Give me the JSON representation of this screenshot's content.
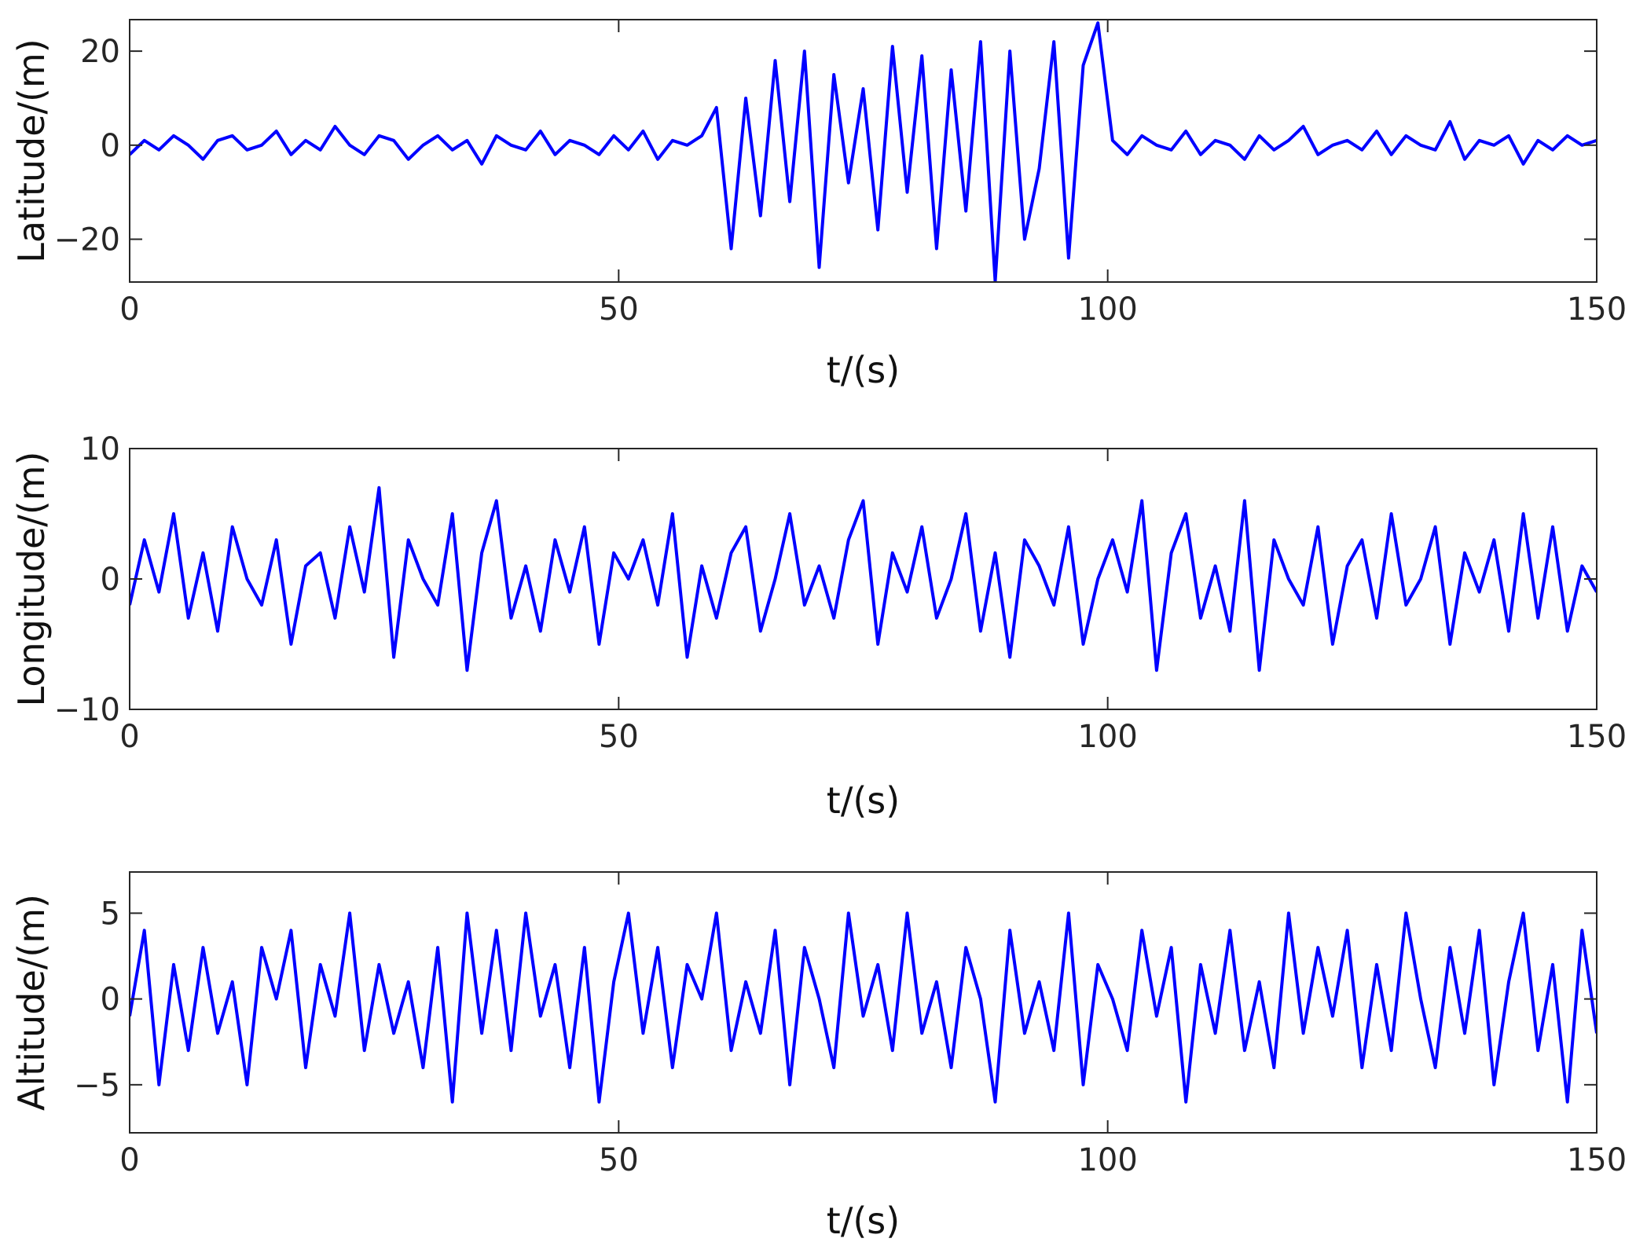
{
  "chart_data": [
    {
      "type": "line",
      "xlabel": "t/(s)",
      "ylabel": "Latitude/(m)",
      "x": [
        0,
        1.5,
        3,
        4.5,
        6,
        7.5,
        9,
        10.5,
        12,
        13.5,
        15,
        16.5,
        18,
        19.5,
        21,
        22.5,
        24,
        25.5,
        27,
        28.5,
        30,
        31.5,
        33,
        34.5,
        36,
        37.5,
        39,
        40.5,
        42,
        43.5,
        45,
        46.5,
        48,
        49.5,
        51,
        52.5,
        54,
        55.5,
        57,
        58.5,
        60,
        61.5,
        63,
        64.5,
        66,
        67.5,
        69,
        70.5,
        72,
        73.5,
        75,
        76.5,
        78,
        79.5,
        81,
        82.5,
        84,
        85.5,
        87,
        88.5,
        90,
        91.5,
        93,
        94.5,
        96,
        97.5,
        99,
        100.5,
        102,
        103.5,
        105,
        106.5,
        108,
        109.5,
        111,
        112.5,
        114,
        115.5,
        117,
        118.5,
        120,
        121.5,
        123,
        124.5,
        126,
        127.5,
        129,
        130.5,
        132,
        133.5,
        135,
        136.5,
        138,
        139.5,
        141,
        142.5,
        144,
        145.5,
        147,
        148.5,
        150
      ],
      "series": [
        {
          "color": "#0000ff",
          "values": [
            -2,
            1,
            -1,
            2,
            0,
            -3,
            1,
            2,
            -1,
            0,
            3,
            -2,
            1,
            -1,
            4,
            0,
            -2,
            2,
            1,
            -3,
            0,
            2,
            -1,
            1,
            -4,
            2,
            0,
            -1,
            3,
            -2,
            1,
            0,
            -2,
            2,
            -1,
            3,
            -3,
            1,
            0,
            2,
            8,
            -22,
            10,
            -15,
            18,
            -12,
            20,
            -26,
            15,
            -8,
            12,
            -18,
            21,
            -10,
            19,
            -22,
            16,
            -14,
            22,
            -29,
            20,
            -20,
            -5,
            22,
            -24,
            17,
            26,
            1,
            -2,
            2,
            0,
            -1,
            3,
            -2,
            1,
            0,
            -3,
            2,
            -1,
            1,
            4,
            -2,
            0,
            1,
            -1,
            3,
            -2,
            2,
            0,
            -1,
            5,
            -3,
            1,
            0,
            2,
            -4,
            1,
            -1,
            2,
            0,
            1
          ]
        }
      ],
      "xlim": [
        0,
        150
      ],
      "ylim": [
        -29.1,
        26.7
      ],
      "xticks": [
        0,
        50,
        100,
        150
      ],
      "yticks": [
        {
          "value": -20,
          "label": "−20"
        },
        0,
        20
      ]
    },
    {
      "type": "line",
      "xlabel": "t/(s)",
      "ylabel": "Longitude/(m)",
      "x": [
        0,
        1.5,
        3,
        4.5,
        6,
        7.5,
        9,
        10.5,
        12,
        13.5,
        15,
        16.5,
        18,
        19.5,
        21,
        22.5,
        24,
        25.5,
        27,
        28.5,
        30,
        31.5,
        33,
        34.5,
        36,
        37.5,
        39,
        40.5,
        42,
        43.5,
        45,
        46.5,
        48,
        49.5,
        51,
        52.5,
        54,
        55.5,
        57,
        58.5,
        60,
        61.5,
        63,
        64.5,
        66,
        67.5,
        69,
        70.5,
        72,
        73.5,
        75,
        76.5,
        78,
        79.5,
        81,
        82.5,
        84,
        85.5,
        87,
        88.5,
        90,
        91.5,
        93,
        94.5,
        96,
        97.5,
        99,
        100.5,
        102,
        103.5,
        105,
        106.5,
        108,
        109.5,
        111,
        112.5,
        114,
        115.5,
        117,
        118.5,
        120,
        121.5,
        123,
        124.5,
        126,
        127.5,
        129,
        130.5,
        132,
        133.5,
        135,
        136.5,
        138,
        139.5,
        141,
        142.5,
        144,
        145.5,
        147,
        148.5,
        150
      ],
      "series": [
        {
          "color": "#0000ff",
          "values": [
            -2,
            3,
            -1,
            5,
            -3,
            2,
            -4,
            4,
            0,
            -2,
            3,
            -5,
            1,
            2,
            -3,
            4,
            -1,
            7,
            -6,
            3,
            0,
            -2,
            5,
            -7,
            2,
            6,
            -3,
            1,
            -4,
            3,
            -1,
            4,
            -5,
            2,
            0,
            3,
            -2,
            5,
            -6,
            1,
            -3,
            2,
            4,
            -4,
            0,
            5,
            -2,
            1,
            -3,
            3,
            6,
            -5,
            2,
            -1,
            4,
            -3,
            0,
            5,
            -4,
            2,
            -6,
            3,
            1,
            -2,
            4,
            -5,
            0,
            3,
            -1,
            6,
            -7,
            2,
            5,
            -3,
            1,
            -4,
            6,
            -7,
            3,
            0,
            -2,
            4,
            -5,
            1,
            3,
            -3,
            5,
            -2,
            0,
            4,
            -5,
            2,
            -1,
            3,
            -4,
            5,
            -3,
            4,
            -4,
            1,
            -1
          ]
        }
      ],
      "xlim": [
        0,
        150
      ],
      "ylim": [
        -10,
        10
      ],
      "xticks": [
        0,
        50,
        100,
        150
      ],
      "yticks": [
        {
          "value": -10,
          "label": "−10"
        },
        0,
        10
      ]
    },
    {
      "type": "line",
      "xlabel": "t/(s)",
      "ylabel": "Altitude/(m)",
      "x": [
        0,
        1.5,
        3,
        4.5,
        6,
        7.5,
        9,
        10.5,
        12,
        13.5,
        15,
        16.5,
        18,
        19.5,
        21,
        22.5,
        24,
        25.5,
        27,
        28.5,
        30,
        31.5,
        33,
        34.5,
        36,
        37.5,
        39,
        40.5,
        42,
        43.5,
        45,
        46.5,
        48,
        49.5,
        51,
        52.5,
        54,
        55.5,
        57,
        58.5,
        60,
        61.5,
        63,
        64.5,
        66,
        67.5,
        69,
        70.5,
        72,
        73.5,
        75,
        76.5,
        78,
        79.5,
        81,
        82.5,
        84,
        85.5,
        87,
        88.5,
        90,
        91.5,
        93,
        94.5,
        96,
        97.5,
        99,
        100.5,
        102,
        103.5,
        105,
        106.5,
        108,
        109.5,
        111,
        112.5,
        114,
        115.5,
        117,
        118.5,
        120,
        121.5,
        123,
        124.5,
        126,
        127.5,
        129,
        130.5,
        132,
        133.5,
        135,
        136.5,
        138,
        139.5,
        141,
        142.5,
        144,
        145.5,
        147,
        148.5,
        150
      ],
      "series": [
        {
          "color": "#0000ff",
          "values": [
            -1,
            4,
            -5,
            2,
            -3,
            3,
            -2,
            1,
            -5,
            3,
            0,
            4,
            -4,
            2,
            -1,
            5,
            -3,
            2,
            -2,
            1,
            -4,
            3,
            -6,
            5,
            -2,
            4,
            -3,
            5,
            -1,
            2,
            -4,
            3,
            -6,
            1,
            5,
            -2,
            3,
            -4,
            2,
            0,
            5,
            -3,
            1,
            -2,
            4,
            -5,
            3,
            0,
            -4,
            5,
            -1,
            2,
            -3,
            5,
            -2,
            1,
            -4,
            3,
            0,
            -6,
            4,
            -2,
            1,
            -3,
            5,
            -5,
            2,
            0,
            -3,
            4,
            -1,
            3,
            -6,
            2,
            -2,
            4,
            -3,
            1,
            -4,
            5,
            -2,
            3,
            -1,
            4,
            -4,
            2,
            -3,
            5,
            0,
            -4,
            3,
            -2,
            4,
            -5,
            1,
            5,
            -3,
            2,
            -6,
            4,
            -2
          ]
        }
      ],
      "xlim": [
        0,
        150
      ],
      "ylim": [
        -7.8,
        7.4
      ],
      "xticks": [
        0,
        50,
        100,
        150
      ],
      "yticks": [
        {
          "value": -5,
          "label": "−5"
        },
        0,
        5
      ]
    }
  ]
}
